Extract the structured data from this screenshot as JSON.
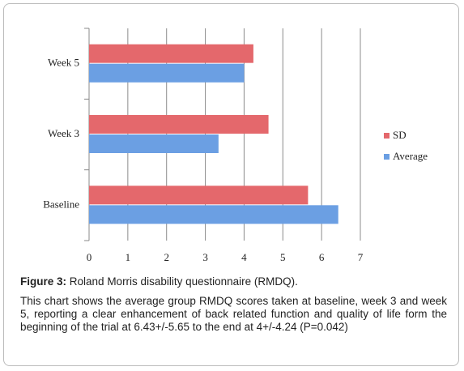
{
  "chart_data": {
    "type": "hbar",
    "categories": [
      "Baseline",
      "Week 3",
      "Week 5"
    ],
    "series": [
      {
        "name": "SD",
        "color": "#e4686c",
        "values": [
          5.65,
          4.63,
          4.24
        ]
      },
      {
        "name": "Average",
        "color": "#6b9fe3",
        "values": [
          6.43,
          3.34,
          4.0
        ]
      }
    ],
    "xlim": [
      0,
      7
    ],
    "xticks": [
      0,
      1,
      2,
      3,
      4,
      5,
      6,
      7
    ],
    "grid": true,
    "legend": "right"
  },
  "caption": {
    "label": "Figure 3:",
    "title": "Roland Morris disability questionnaire (RMDQ).",
    "text": "This chart shows the average group RMDQ scores taken at baseline, week 3 and week 5, reporting a clear enhancement of back related function and quality of life form the beginning of the trial at 6.43+/-5.65 to the end at 4+/-4.24 (P=0.042)"
  }
}
